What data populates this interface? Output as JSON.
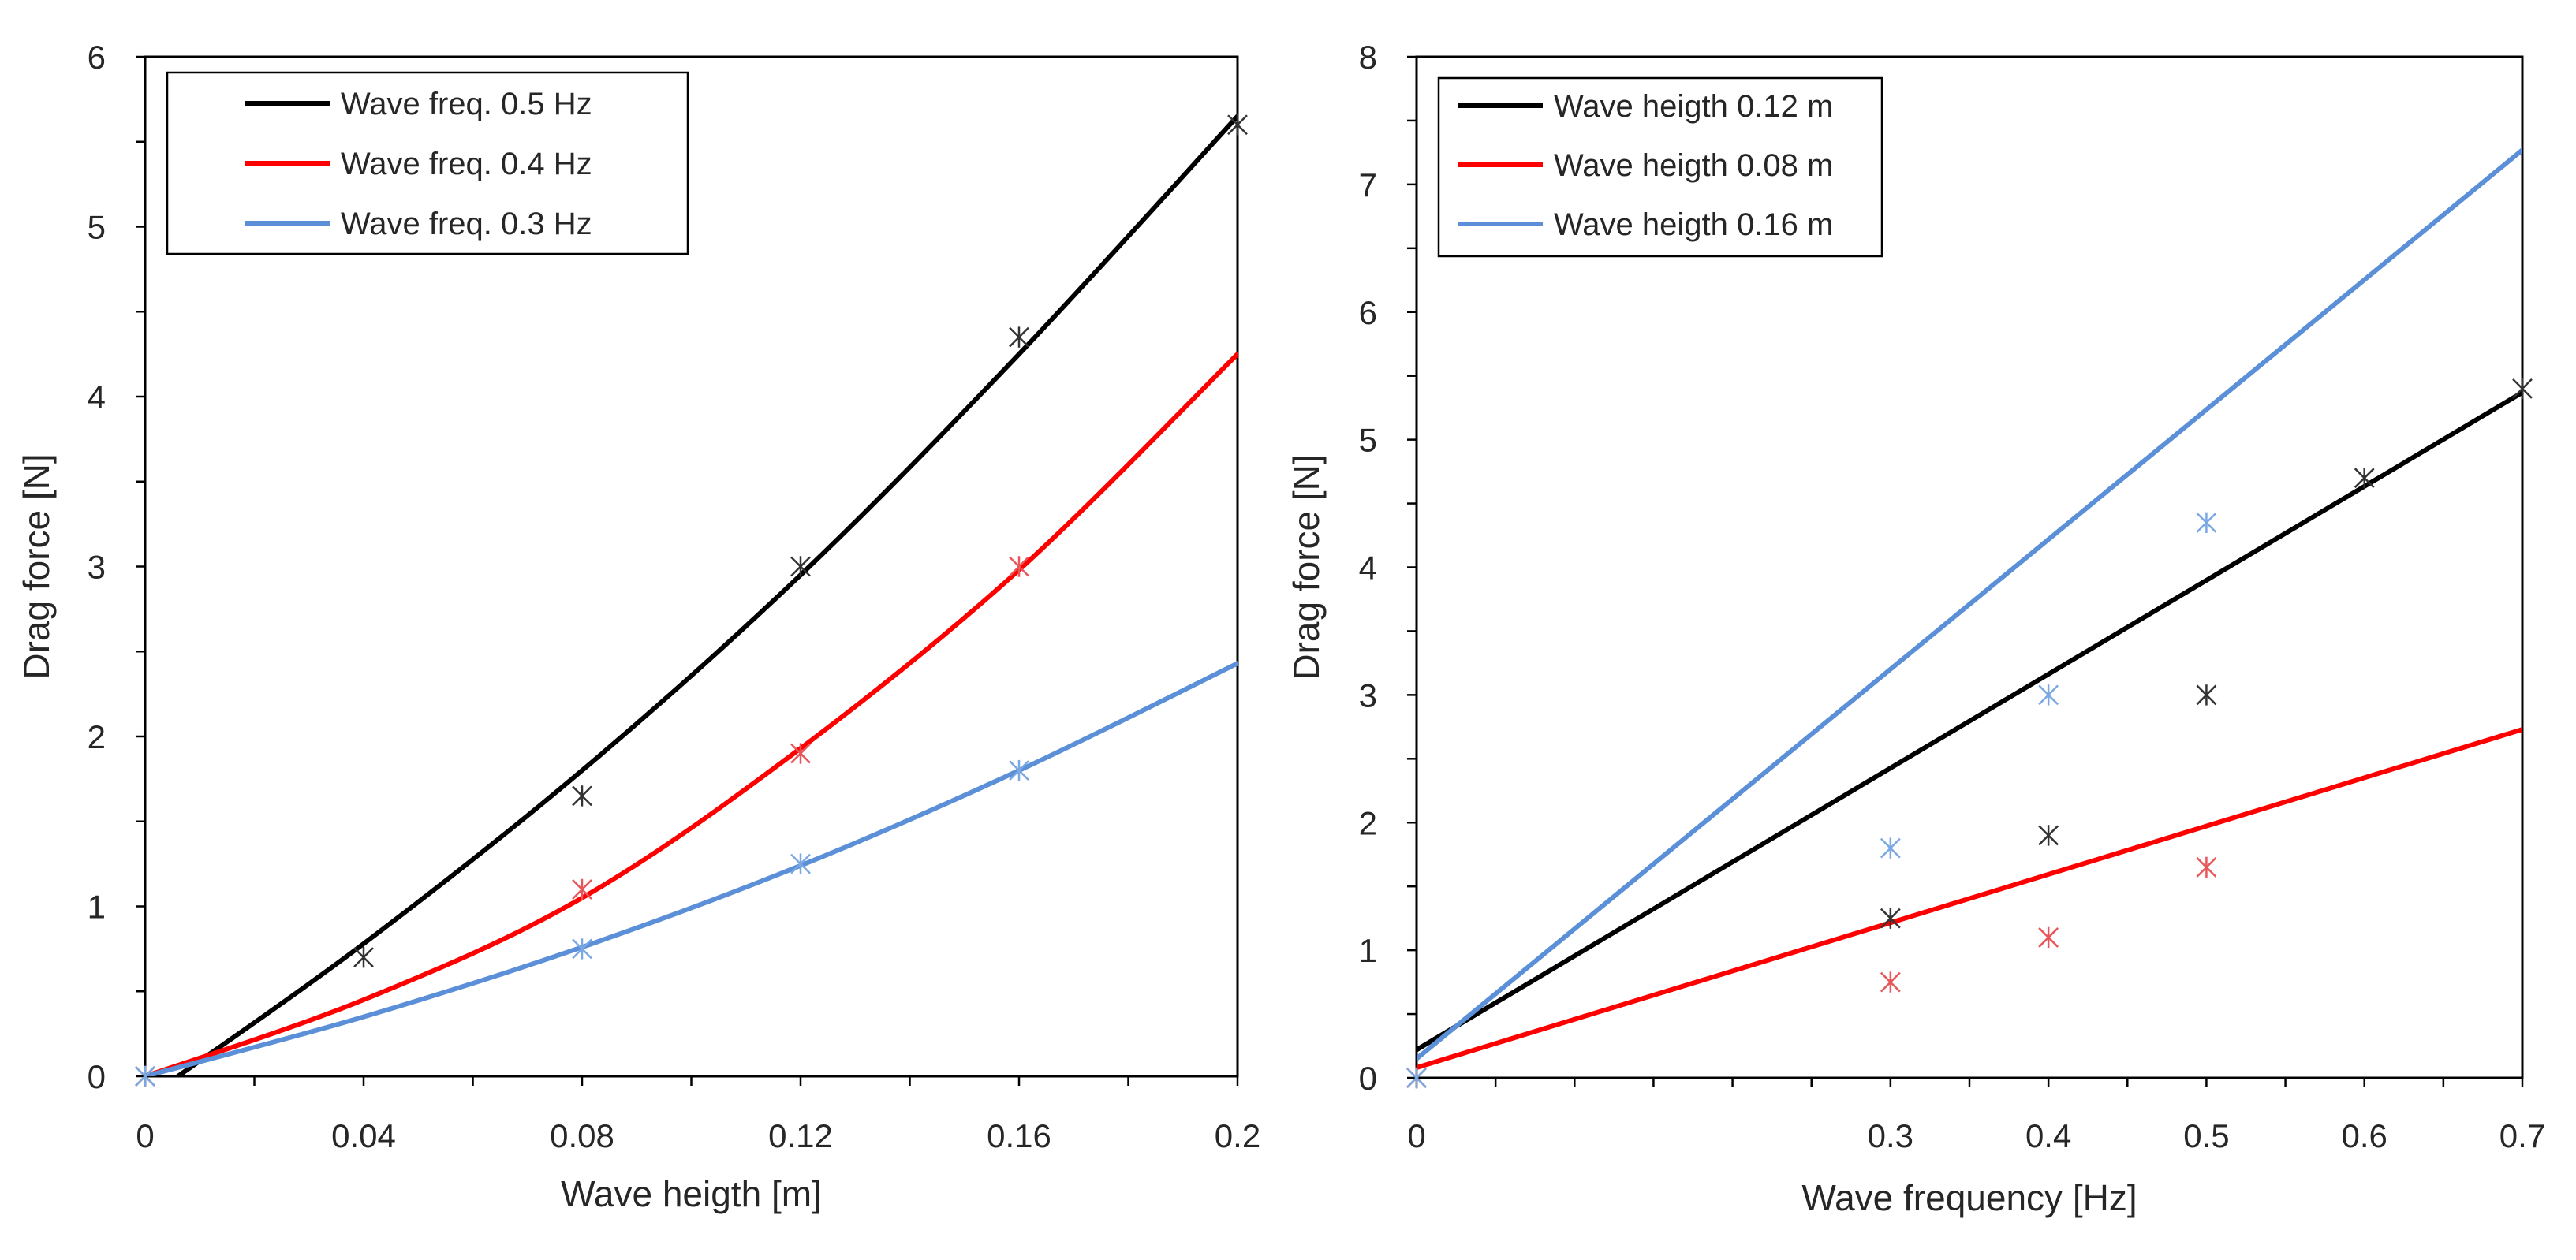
{
  "chart_data": [
    {
      "type": "scatter",
      "title": "",
      "xlabel": "Wave heigth [m]",
      "ylabel": "Drag force [N]",
      "xlim": [
        0,
        0.2
      ],
      "ylim": [
        0,
        6
      ],
      "x_ticks": [
        0,
        0.04,
        0.08,
        0.12,
        0.16,
        0.2
      ],
      "x_tick_labels": [
        "0",
        "0.04",
        "0.08",
        "0.12",
        "0.16",
        "0.2"
      ],
      "y_ticks": [
        0,
        1,
        2,
        3,
        4,
        5,
        6
      ],
      "y_tick_labels": [
        "0",
        "1",
        "2",
        "3",
        "4",
        "5",
        "6"
      ],
      "legend_position": "top-left",
      "series": [
        {
          "name": "Wave freq. 0.5 Hz",
          "color": "#000000",
          "marker_color": "#333333",
          "points": [
            [
              0,
              0
            ],
            [
              0.04,
              0.7
            ],
            [
              0.08,
              1.65
            ],
            [
              0.12,
              3.0
            ],
            [
              0.16,
              4.35
            ],
            [
              0.2,
              5.6
            ]
          ],
          "fit": [
            [
              0.006,
              0
            ],
            [
              0.04,
              0.78
            ],
            [
              0.08,
              1.8
            ],
            [
              0.12,
              2.95
            ],
            [
              0.16,
              4.25
            ],
            [
              0.2,
              5.65
            ]
          ]
        },
        {
          "name": "Wave freq. 0.4 Hz",
          "color": "#ff0000",
          "marker_color": "#e8565a",
          "points": [
            [
              0,
              0
            ],
            [
              0.08,
              1.1
            ],
            [
              0.12,
              1.9
            ],
            [
              0.16,
              3.0
            ]
          ],
          "fit": [
            [
              0,
              0
            ],
            [
              0.04,
              0.45
            ],
            [
              0.08,
              1.05
            ],
            [
              0.12,
              1.93
            ],
            [
              0.16,
              2.98
            ],
            [
              0.2,
              4.25
            ]
          ]
        },
        {
          "name": "Wave freq. 0.3 Hz",
          "color": "#5b8fd7",
          "marker_color": "#7aa8e3",
          "points": [
            [
              0,
              0
            ],
            [
              0.08,
              0.75
            ],
            [
              0.12,
              1.25
            ],
            [
              0.16,
              1.8
            ]
          ],
          "fit": [
            [
              0,
              0
            ],
            [
              0.04,
              0.35
            ],
            [
              0.08,
              0.76
            ],
            [
              0.12,
              1.24
            ],
            [
              0.16,
              1.8
            ],
            [
              0.2,
              2.43
            ]
          ]
        }
      ]
    },
    {
      "type": "scatter",
      "title": "",
      "xlabel": "Wave frequency [Hz]",
      "ylabel": "Drag force [N]",
      "xlim": [
        0,
        0.7
      ],
      "ylim": [
        0,
        8
      ],
      "x_ticks": [
        0,
        0.3,
        0.4,
        0.5,
        0.6,
        0.7
      ],
      "x_tick_labels": [
        "0",
        "0.3",
        "0.4",
        "0.5",
        "0.6",
        "0.7"
      ],
      "x_minor_step": 0.05,
      "y_ticks": [
        0,
        1,
        2,
        3,
        4,
        5,
        6,
        7,
        8
      ],
      "y_tick_labels": [
        "0",
        "1",
        "2",
        "3",
        "4",
        "5",
        "6",
        "7",
        "8"
      ],
      "legend_position": "top-left",
      "series": [
        {
          "name": "Wave heigth 0.12 m",
          "color": "#000000",
          "marker_color": "#333333",
          "points": [
            [
              0,
              0
            ],
            [
              0.3,
              1.25
            ],
            [
              0.4,
              1.9
            ],
            [
              0.5,
              3.0
            ],
            [
              0.6,
              4.7
            ],
            [
              0.7,
              5.4
            ]
          ],
          "fit": [
            [
              0,
              0.22
            ],
            [
              0.7,
              5.37
            ]
          ]
        },
        {
          "name": "Wave heigth 0.08 m",
          "color": "#ff0000",
          "marker_color": "#e8565a",
          "points": [
            [
              0,
              0
            ],
            [
              0.3,
              0.75
            ],
            [
              0.4,
              1.1
            ],
            [
              0.5,
              1.65
            ]
          ],
          "fit": [
            [
              0,
              0.08
            ],
            [
              0.7,
              2.73
            ]
          ]
        },
        {
          "name": "Wave heigth 0.16 m",
          "color": "#5b8fd7",
          "marker_color": "#7aa8e3",
          "points": [
            [
              0,
              0
            ],
            [
              0.3,
              1.8
            ],
            [
              0.4,
              3.0
            ],
            [
              0.5,
              4.35
            ]
          ],
          "fit": [
            [
              0,
              0.15
            ],
            [
              0.7,
              7.27
            ]
          ]
        }
      ]
    }
  ]
}
